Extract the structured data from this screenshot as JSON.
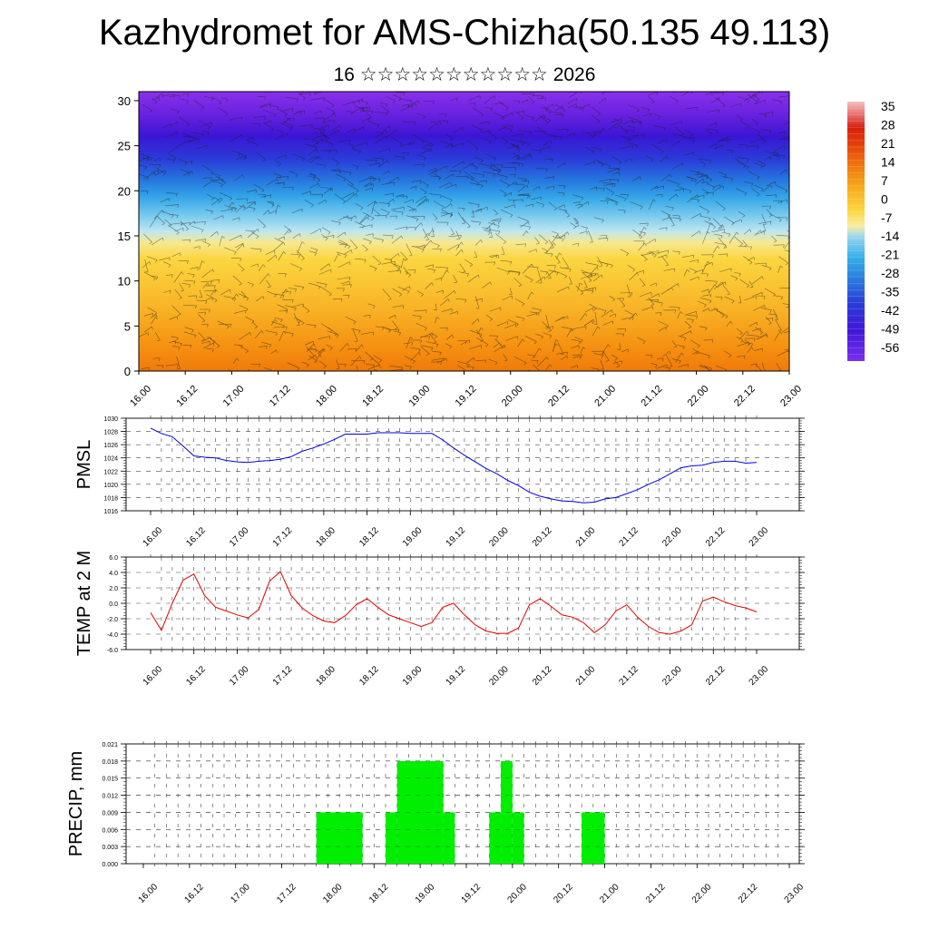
{
  "header": {
    "title": "Kazhydromet for AMS-Chizha(50.135 49.113)",
    "subtitle": "16 ☆☆☆☆☆☆☆☆☆☆☆ 2026"
  },
  "colors": {
    "pmsl_line": "#0000dd",
    "temp_line": "#e00000",
    "precip_bar": "#00ee00",
    "grid": "#555555"
  },
  "chart_data": [
    {
      "type": "heatmap",
      "name": "cross-section",
      "description_units": "temperature with wind barbs vs height",
      "y_ticks": [
        0,
        5,
        10,
        15,
        20,
        25,
        30
      ],
      "ylim": [
        0,
        31
      ],
      "x_ticks": [
        "16.00",
        "16.12",
        "17.00",
        "17.12",
        "18.00",
        "18.12",
        "19.00",
        "19.12",
        "20.00",
        "20.12",
        "21.00",
        "21.12",
        "22.00",
        "22.12",
        "23.00"
      ],
      "colorbar_labels": [
        "35",
        "28",
        "21",
        "14",
        "7",
        "0",
        "-7",
        "-14",
        "-21",
        "-28",
        "-35",
        "-42",
        "-49",
        "-56"
      ]
    },
    {
      "type": "line",
      "name": "pmsl",
      "ylabel": "PMSL",
      "ylim": [
        1016,
        1030
      ],
      "y_ticks": [
        "1030",
        "1028",
        "1026",
        "1024",
        "1022",
        "1020",
        "1018",
        "1016"
      ],
      "x_ticks": [
        "16.00",
        "16.12",
        "17.00",
        "17.12",
        "18.00",
        "18.12",
        "19.00",
        "19.12",
        "20.00",
        "20.12",
        "21.00",
        "21.12",
        "22.00",
        "22.12",
        "23.00"
      ],
      "values": [
        1028.5,
        1027.7,
        1027.2,
        1025.8,
        1024.3,
        1024.1,
        1024.0,
        1023.6,
        1023.4,
        1023.3,
        1023.5,
        1023.6,
        1023.8,
        1024.2,
        1025.0,
        1025.5,
        1026.1,
        1026.8,
        1027.6,
        1027.6,
        1027.6,
        1027.8,
        1027.8,
        1027.8,
        1027.7,
        1027.7,
        1027.7,
        1026.7,
        1025.5,
        1024.4,
        1023.4,
        1022.4,
        1021.6,
        1020.6,
        1019.8,
        1018.8,
        1018.2,
        1017.8,
        1017.5,
        1017.4,
        1017.2,
        1017.3,
        1017.8,
        1018.0,
        1018.6,
        1019.2,
        1020.0,
        1020.7,
        1021.6,
        1022.5,
        1022.8,
        1022.9,
        1023.3,
        1023.5,
        1023.5,
        1023.2,
        1023.3
      ]
    },
    {
      "type": "line",
      "name": "temp",
      "ylabel": "TEMP at 2 M",
      "ylim": [
        -6,
        6
      ],
      "y_ticks": [
        "6.0",
        "4.0",
        "2.0",
        "0.0",
        "-2.0",
        "-4.0",
        "-6.0"
      ],
      "x_ticks": [
        "16.00",
        "16.12",
        "17.00",
        "17.12",
        "18.00",
        "18.12",
        "19.00",
        "19.12",
        "20.00",
        "20.12",
        "21.00",
        "21.12",
        "22.00",
        "22.12",
        "23.00"
      ],
      "values": [
        -1.2,
        -3.5,
        0.0,
        3.0,
        3.8,
        1.0,
        -0.5,
        -1.0,
        -1.5,
        -1.9,
        -0.8,
        2.9,
        4.1,
        1.0,
        -0.6,
        -1.6,
        -2.3,
        -2.5,
        -1.6,
        -0.2,
        0.6,
        -0.5,
        -1.5,
        -2.0,
        -2.5,
        -3.0,
        -2.5,
        -0.5,
        0.0,
        -1.5,
        -2.8,
        -3.6,
        -3.9,
        -3.9,
        -3.2,
        -0.2,
        0.6,
        -0.4,
        -1.5,
        -1.8,
        -2.5,
        -3.8,
        -2.8,
        -1.0,
        -0.2,
        -1.8,
        -3.0,
        -3.8,
        -4.0,
        -3.6,
        -2.8,
        0.3,
        0.8,
        0.2,
        -0.3,
        -0.6,
        -1.1
      ]
    },
    {
      "type": "bar",
      "name": "precip",
      "ylabel": "PRECIP, mm",
      "ylim": [
        0,
        0.021
      ],
      "y_ticks": [
        "0.021",
        "0.018",
        "0.015",
        "0.012",
        "0.009",
        "0.006",
        "0.003",
        "0.000"
      ],
      "x_ticks": [
        "16.00",
        "16.12",
        "17.00",
        "17.12",
        "18.00",
        "18.12",
        "19.00",
        "19.12",
        "20.00",
        "20.12",
        "21.00",
        "21.12",
        "22.00",
        "22.12",
        "23.00"
      ],
      "bars": [
        {
          "start_h": 45,
          "end_h": 57,
          "value": 0.009
        },
        {
          "start_h": 63,
          "end_h": 66,
          "value": 0.009
        },
        {
          "start_h": 66,
          "end_h": 78,
          "value": 0.018
        },
        {
          "start_h": 78,
          "end_h": 81,
          "value": 0.009
        },
        {
          "start_h": 90,
          "end_h": 93,
          "value": 0.009
        },
        {
          "start_h": 93,
          "end_h": 96,
          "value": 0.018
        },
        {
          "start_h": 96,
          "end_h": 99,
          "value": 0.009
        },
        {
          "start_h": 114,
          "end_h": 120,
          "value": 0.009
        }
      ]
    }
  ]
}
